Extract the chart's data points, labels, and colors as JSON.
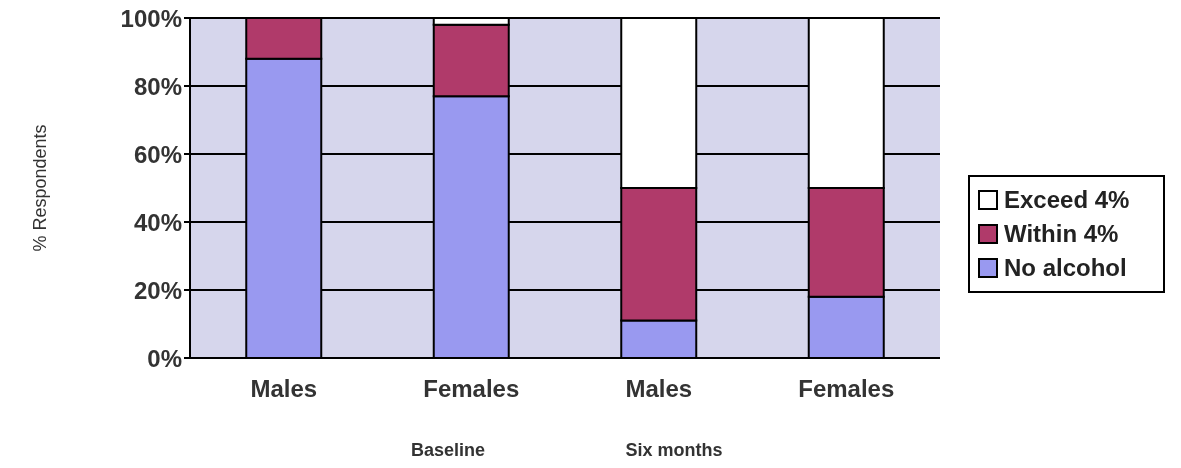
{
  "chart_data": {
    "type": "bar",
    "stacked": true,
    "ylabel": "% Respondents",
    "categories": [
      "Males",
      "Females",
      "Males",
      "Females"
    ],
    "series": [
      {
        "name": "No alcohol",
        "color": "#9999f0",
        "values": [
          88,
          77,
          11,
          18
        ]
      },
      {
        "name": "Within 4%",
        "color": "#b03a6a",
        "values": [
          12,
          21,
          39,
          32
        ]
      },
      {
        "name": "Exceed 4%",
        "color": "#ffffff",
        "values": [
          0,
          2,
          50,
          50
        ]
      }
    ],
    "ylim": [
      0,
      100
    ],
    "yticks": [
      {
        "value": 0,
        "label": "0%"
      },
      {
        "value": 20,
        "label": "20%"
      },
      {
        "value": 40,
        "label": "40%"
      },
      {
        "value": 60,
        "label": "60%"
      },
      {
        "value": 80,
        "label": "80%"
      },
      {
        "value": 100,
        "label": "100%"
      }
    ],
    "grid": "y",
    "legend": "right",
    "annotations": [
      "Baseline",
      "Six months"
    ]
  }
}
